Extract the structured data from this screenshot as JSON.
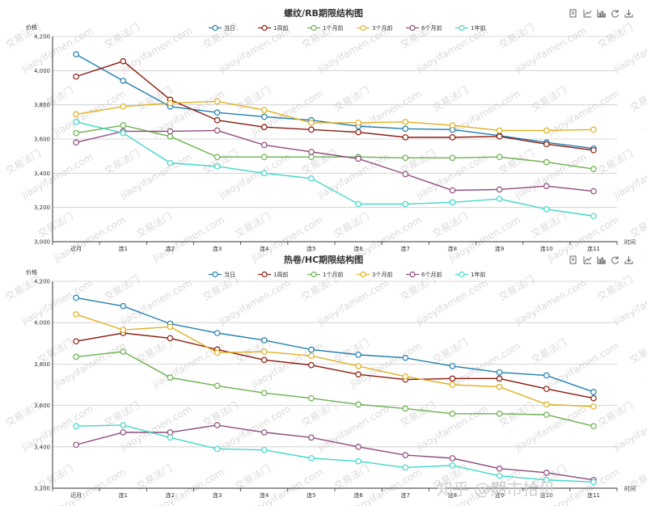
{
  "colors": {
    "当日": "#1f7fb0",
    "1周前": "#8b1a0e",
    "1个月前": "#6ab04c",
    "3个月前": "#e0b020",
    "6个月前": "#8e4a7a",
    "1年前": "#40d8c8"
  },
  "toolbar_icons": [
    "data-view-icon",
    "line-chart-icon",
    "bar-chart-icon",
    "refresh-icon",
    "download-icon"
  ],
  "watermark": {
    "text": "交易法门",
    "site": "jiaoyifamen.com",
    "corner": "知乎 @期市拾贝"
  },
  "chart_data": [
    {
      "type": "line",
      "title": "螺纹/RB期限结构图",
      "ylabel": "价格",
      "xlabel": "时间",
      "ylim": [
        3000,
        4200
      ],
      "yticks": [
        3000,
        3200,
        3400,
        3600,
        3800,
        4000,
        4200
      ],
      "ytick_labels": [
        "3,000",
        "3,200",
        "3,400",
        "3,600",
        "3,800",
        "4,000",
        "4,200"
      ],
      "legend_position": "top",
      "grid": true,
      "categories": [
        "近月",
        "连1",
        "连2",
        "连3",
        "连4",
        "连5",
        "连6",
        "连7",
        "连8",
        "连9",
        "连10",
        "连11"
      ],
      "series": [
        {
          "name": "当日",
          "values": [
            4095,
            3940,
            3790,
            3755,
            3730,
            3710,
            3675,
            3660,
            3655,
            3620,
            3580,
            3545
          ]
        },
        {
          "name": "1周前",
          "values": [
            3965,
            4055,
            3830,
            3710,
            3670,
            3655,
            3640,
            3610,
            3610,
            3615,
            3570,
            3535
          ]
        },
        {
          "name": "1个月前",
          "values": [
            3635,
            3680,
            3615,
            3495,
            3495,
            3495,
            3495,
            3490,
            3490,
            3495,
            3465,
            3425
          ]
        },
        {
          "name": "3个月前",
          "values": [
            3745,
            3790,
            3810,
            3820,
            3770,
            3695,
            3695,
            3700,
            3680,
            3650,
            3650,
            3655
          ]
        },
        {
          "name": "6个月前",
          "values": [
            3580,
            3645,
            3645,
            3650,
            3565,
            3525,
            3485,
            3395,
            3300,
            3305,
            3325,
            3295
          ]
        },
        {
          "name": "1年前",
          "values": [
            3700,
            3635,
            3460,
            3440,
            3400,
            3370,
            3220,
            3220,
            3230,
            3250,
            3190,
            3150
          ]
        }
      ]
    },
    {
      "type": "line",
      "title": "热卷/HC期限结构图",
      "ylabel": "价格",
      "xlabel": "时间",
      "ylim": [
        3200,
        4200
      ],
      "yticks": [
        3200,
        3400,
        3600,
        3800,
        4000,
        4200
      ],
      "ytick_labels": [
        "3,200",
        "3,400",
        "3,600",
        "3,800",
        "4,000",
        "4,200"
      ],
      "legend_position": "top",
      "grid": true,
      "categories": [
        "近月",
        "连1",
        "连2",
        "连3",
        "连4",
        "连5",
        "连6",
        "连7",
        "连8",
        "连9",
        "连10",
        "连11"
      ],
      "series": [
        {
          "name": "当日",
          "values": [
            4120,
            4080,
            3995,
            3950,
            3915,
            3870,
            3845,
            3830,
            3790,
            3760,
            3745,
            3665
          ]
        },
        {
          "name": "1周前",
          "values": [
            3910,
            3950,
            3925,
            3870,
            3820,
            3795,
            3750,
            3725,
            3730,
            3730,
            3680,
            3635
          ]
        },
        {
          "name": "1个月前",
          "values": [
            3835,
            3860,
            3735,
            3695,
            3660,
            3635,
            3605,
            3585,
            3560,
            3560,
            3555,
            3500
          ]
        },
        {
          "name": "3个月前",
          "values": [
            4040,
            3965,
            3980,
            3855,
            3860,
            3840,
            3790,
            3740,
            3700,
            3690,
            3605,
            3595
          ]
        },
        {
          "name": "6个月前",
          "values": [
            3410,
            3470,
            3470,
            3505,
            3470,
            3445,
            3400,
            3360,
            3345,
            3295,
            3275,
            3240
          ]
        },
        {
          "name": "1年前",
          "values": [
            3500,
            3505,
            3445,
            3390,
            3385,
            3345,
            3330,
            3300,
            3310,
            3260,
            3240,
            3230
          ]
        }
      ]
    }
  ]
}
